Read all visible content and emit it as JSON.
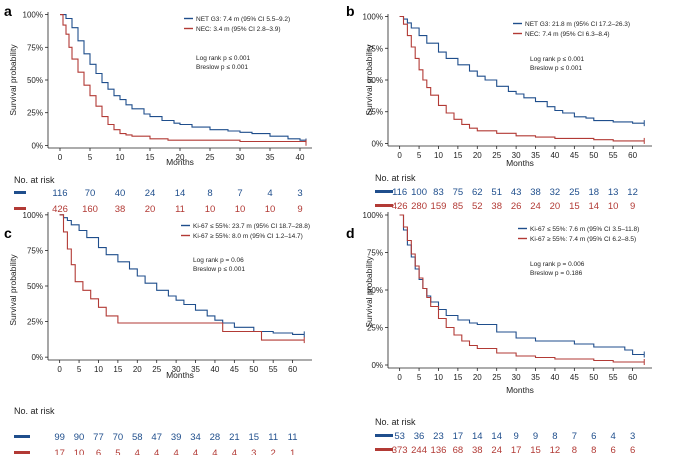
{
  "colors": {
    "blue": "#1f4e8c",
    "red": "#b23a35",
    "axis": "#222222"
  },
  "chart_data": [
    {
      "type": "line",
      "panel_label": "a",
      "ylabel": "Survival probability",
      "xlabel": "Months",
      "xlim": [
        -2,
        42
      ],
      "ylim": [
        -0.02,
        1.02
      ],
      "x_ticks": [
        0,
        5,
        10,
        15,
        20,
        25,
        30,
        35,
        40
      ],
      "y_ticks": [
        0,
        0.25,
        0.5,
        0.75,
        1.0
      ],
      "y_tick_labels": [
        "0%",
        "25%",
        "50%",
        "75%",
        "100%"
      ],
      "legend": [
        "NET G3: 7.4 m (95% CI 5.5–9.2)",
        "NEC:      3.4 m (95% CI 2.8–3.9)"
      ],
      "stats": [
        "Log rank p ≤ 0.001",
        "Breslow p ≤ 0.001"
      ],
      "series": [
        {
          "name": "NET G3",
          "color": "blue",
          "points": [
            [
              0,
              1
            ],
            [
              1,
              0.97
            ],
            [
              2,
              0.9
            ],
            [
              3,
              0.8
            ],
            [
              4,
              0.7
            ],
            [
              5,
              0.62
            ],
            [
              6,
              0.55
            ],
            [
              7,
              0.48
            ],
            [
              8,
              0.43
            ],
            [
              9,
              0.38
            ],
            [
              10,
              0.35
            ],
            [
              11,
              0.31
            ],
            [
              12,
              0.28
            ],
            [
              14,
              0.24
            ],
            [
              15,
              0.22
            ],
            [
              17,
              0.19
            ],
            [
              19,
              0.17
            ],
            [
              20,
              0.16
            ],
            [
              22,
              0.14
            ],
            [
              25,
              0.12
            ],
            [
              28,
              0.11
            ],
            [
              30,
              0.1
            ],
            [
              32,
              0.09
            ],
            [
              35,
              0.07
            ],
            [
              38,
              0.05
            ],
            [
              40,
              0.04
            ],
            [
              41,
              0.03
            ]
          ]
        },
        {
          "name": "NEC",
          "color": "red",
          "points": [
            [
              0,
              1
            ],
            [
              0.5,
              0.92
            ],
            [
              1,
              0.85
            ],
            [
              1.5,
              0.75
            ],
            [
              2,
              0.66
            ],
            [
              3,
              0.56
            ],
            [
              4,
              0.46
            ],
            [
              5,
              0.38
            ],
            [
              6,
              0.3
            ],
            [
              7,
              0.22
            ],
            [
              8,
              0.16
            ],
            [
              9,
              0.12
            ],
            [
              10,
              0.09
            ],
            [
              11,
              0.08
            ],
            [
              12,
              0.07
            ],
            [
              15,
              0.05
            ],
            [
              18,
              0.04
            ],
            [
              22,
              0.04
            ],
            [
              30,
              0.03
            ],
            [
              35,
              0.03
            ],
            [
              41,
              0.02
            ]
          ]
        }
      ],
      "risk_title": "No. at risk",
      "risk_x": [
        0,
        5,
        10,
        15,
        20,
        25,
        30,
        35,
        40
      ],
      "risk_rows": [
        {
          "color": "blue",
          "values": [
            "116",
            "70",
            "40",
            "24",
            "14",
            "8",
            "7",
            "4",
            "3"
          ]
        },
        {
          "color": "red",
          "values": [
            "426",
            "160",
            "38",
            "20",
            "11",
            "10",
            "10",
            "10",
            "9"
          ]
        }
      ]
    },
    {
      "type": "line",
      "panel_label": "b",
      "ylabel": "Survival probability",
      "xlabel": "Months",
      "xlim": [
        -3,
        65
      ],
      "ylim": [
        -0.02,
        1.02
      ],
      "x_ticks": [
        0,
        5,
        10,
        15,
        20,
        25,
        30,
        35,
        40,
        45,
        50,
        55,
        60
      ],
      "y_ticks": [
        0,
        0.25,
        0.5,
        0.75,
        1.0
      ],
      "y_tick_labels": [
        "0%",
        "25%",
        "50%",
        "75%",
        "100%"
      ],
      "legend": [
        "NET G3: 21.8 m (95% CI 17.2–26.3)",
        "NEC:      7.4 m (95% CI 6.3–8.4)"
      ],
      "stats": [
        "Log rank p ≤ 0.001",
        "Breslow p ≤ 0.001"
      ],
      "series": [
        {
          "name": "NET G3",
          "color": "blue",
          "points": [
            [
              0,
              1
            ],
            [
              1,
              0.98
            ],
            [
              2,
              0.95
            ],
            [
              3,
              0.91
            ],
            [
              5,
              0.85
            ],
            [
              7,
              0.79
            ],
            [
              10,
              0.72
            ],
            [
              12,
              0.67
            ],
            [
              15,
              0.62
            ],
            [
              18,
              0.57
            ],
            [
              20,
              0.53
            ],
            [
              22,
              0.5
            ],
            [
              25,
              0.45
            ],
            [
              28,
              0.41
            ],
            [
              30,
              0.39
            ],
            [
              32,
              0.36
            ],
            [
              35,
              0.33
            ],
            [
              38,
              0.29
            ],
            [
              40,
              0.26
            ],
            [
              42,
              0.24
            ],
            [
              45,
              0.21
            ],
            [
              48,
              0.2
            ],
            [
              50,
              0.18
            ],
            [
              55,
              0.17
            ],
            [
              60,
              0.16
            ],
            [
              63,
              0.16
            ]
          ]
        },
        {
          "name": "NEC",
          "color": "red",
          "points": [
            [
              0,
              1
            ],
            [
              1,
              0.94
            ],
            [
              2,
              0.85
            ],
            [
              3,
              0.76
            ],
            [
              4,
              0.67
            ],
            [
              5,
              0.58
            ],
            [
              6,
              0.5
            ],
            [
              7,
              0.44
            ],
            [
              8,
              0.38
            ],
            [
              10,
              0.3
            ],
            [
              12,
              0.24
            ],
            [
              14,
              0.19
            ],
            [
              16,
              0.15
            ],
            [
              18,
              0.12
            ],
            [
              20,
              0.1
            ],
            [
              25,
              0.08
            ],
            [
              30,
              0.06
            ],
            [
              35,
              0.05
            ],
            [
              40,
              0.04
            ],
            [
              50,
              0.03
            ],
            [
              55,
              0.02
            ],
            [
              63,
              0.02
            ]
          ]
        }
      ],
      "risk_title": "No. at risk",
      "risk_x": [
        0,
        5,
        10,
        15,
        20,
        25,
        30,
        35,
        40,
        45,
        50,
        55,
        60
      ],
      "risk_rows": [
        {
          "color": "blue",
          "values": [
            "116",
            "100",
            "83",
            "75",
            "62",
            "51",
            "43",
            "38",
            "32",
            "25",
            "18",
            "13",
            "12"
          ]
        },
        {
          "color": "red",
          "values": [
            "426",
            "280",
            "159",
            "85",
            "52",
            "38",
            "26",
            "24",
            "20",
            "15",
            "14",
            "10",
            "9"
          ]
        }
      ]
    },
    {
      "type": "line",
      "panel_label": "c",
      "ylabel": "Survival probability",
      "xlabel": "Months",
      "xlim": [
        -3,
        65
      ],
      "ylim": [
        -0.02,
        1.02
      ],
      "x_ticks": [
        0,
        5,
        10,
        15,
        20,
        25,
        30,
        35,
        40,
        45,
        50,
        55,
        60
      ],
      "y_ticks": [
        0,
        0.25,
        0.5,
        0.75,
        1.0
      ],
      "y_tick_labels": [
        "0%",
        "25%",
        "50%",
        "75%",
        "100%"
      ],
      "legend": [
        "Ki-67 ≤ 55%: 23.7 m (95% CI 18.7–28.8)",
        "Ki-67 ≥ 55%: 8.0 m (95% CI 1.2–14.7)"
      ],
      "stats": [
        "Log rank p = 0.06",
        "Breslow p ≤ 0.001"
      ],
      "series": [
        {
          "name": "Ki-67 ≤ 55%",
          "color": "blue",
          "points": [
            [
              0,
              1
            ],
            [
              1,
              0.98
            ],
            [
              2,
              0.96
            ],
            [
              3,
              0.93
            ],
            [
              5,
              0.89
            ],
            [
              7,
              0.84
            ],
            [
              10,
              0.77
            ],
            [
              12,
              0.72
            ],
            [
              15,
              0.67
            ],
            [
              18,
              0.62
            ],
            [
              20,
              0.57
            ],
            [
              22,
              0.52
            ],
            [
              25,
              0.47
            ],
            [
              28,
              0.43
            ],
            [
              30,
              0.4
            ],
            [
              32,
              0.37
            ],
            [
              35,
              0.33
            ],
            [
              38,
              0.29
            ],
            [
              40,
              0.26
            ],
            [
              42,
              0.24
            ],
            [
              45,
              0.21
            ],
            [
              50,
              0.18
            ],
            [
              55,
              0.17
            ],
            [
              60,
              0.16
            ],
            [
              63,
              0.16
            ]
          ]
        },
        {
          "name": "Ki-67 ≥ 55%",
          "color": "red",
          "points": [
            [
              0,
              1
            ],
            [
              1,
              0.88
            ],
            [
              2,
              0.76
            ],
            [
              3,
              0.65
            ],
            [
              4,
              0.53
            ],
            [
              6,
              0.47
            ],
            [
              8,
              0.41
            ],
            [
              10,
              0.35
            ],
            [
              12,
              0.29
            ],
            [
              15,
              0.24
            ],
            [
              40,
              0.24
            ],
            [
              42,
              0.18
            ],
            [
              50,
              0.18
            ],
            [
              52,
              0.12
            ],
            [
              63,
              0.12
            ]
          ]
        }
      ],
      "risk_title": "No. at risk",
      "risk_x": [
        0,
        5,
        10,
        15,
        20,
        25,
        30,
        35,
        40,
        45,
        50,
        55,
        60
      ],
      "risk_rows": [
        {
          "color": "blue",
          "values": [
            "99",
            "90",
            "77",
            "70",
            "58",
            "47",
            "39",
            "34",
            "28",
            "21",
            "15",
            "11",
            "11"
          ]
        },
        {
          "color": "red",
          "values": [
            "17",
            "10",
            "6",
            "5",
            "4",
            "4",
            "4",
            "4",
            "4",
            "4",
            "3",
            "2",
            "1"
          ]
        }
      ]
    },
    {
      "type": "line",
      "panel_label": "d",
      "ylabel": "Survival probability",
      "xlabel": "Months",
      "xlim": [
        -3,
        65
      ],
      "ylim": [
        -0.02,
        1.02
      ],
      "x_ticks": [
        0,
        5,
        10,
        15,
        20,
        25,
        30,
        35,
        40,
        45,
        50,
        55,
        60
      ],
      "y_ticks": [
        0,
        0.25,
        0.5,
        0.75,
        1.0
      ],
      "y_tick_labels": [
        "0%",
        "25%",
        "50%",
        "75%",
        "100%"
      ],
      "legend": [
        "Ki-67 ≤ 55%:   7.6 m (95% CI 3.5–11.8)",
        "Ki-67 ≥ 55%: 7.4 m (95% CI 6.2–8.5)"
      ],
      "stats": [
        "Log rank p = 0.006",
        "Breslow p = 0.186"
      ],
      "series": [
        {
          "name": "Ki-67 ≤ 55%",
          "color": "blue",
          "points": [
            [
              0,
              1
            ],
            [
              1,
              0.9
            ],
            [
              2,
              0.8
            ],
            [
              3,
              0.72
            ],
            [
              4,
              0.64
            ],
            [
              5,
              0.57
            ],
            [
              6,
              0.51
            ],
            [
              7,
              0.46
            ],
            [
              8,
              0.42
            ],
            [
              10,
              0.37
            ],
            [
              12,
              0.33
            ],
            [
              15,
              0.3
            ],
            [
              18,
              0.28
            ],
            [
              20,
              0.27
            ],
            [
              25,
              0.22
            ],
            [
              30,
              0.18
            ],
            [
              35,
              0.16
            ],
            [
              40,
              0.16
            ],
            [
              45,
              0.14
            ],
            [
              50,
              0.12
            ],
            [
              55,
              0.12
            ],
            [
              58,
              0.1
            ],
            [
              60,
              0.07
            ],
            [
              63,
              0.07
            ]
          ]
        },
        {
          "name": "Ki-67 ≥ 55%",
          "color": "red",
          "points": [
            [
              0,
              1
            ],
            [
              1,
              0.92
            ],
            [
              2,
              0.83
            ],
            [
              3,
              0.74
            ],
            [
              4,
              0.66
            ],
            [
              5,
              0.58
            ],
            [
              6,
              0.51
            ],
            [
              7,
              0.45
            ],
            [
              8,
              0.39
            ],
            [
              10,
              0.31
            ],
            [
              12,
              0.25
            ],
            [
              14,
              0.2
            ],
            [
              16,
              0.16
            ],
            [
              18,
              0.13
            ],
            [
              20,
              0.11
            ],
            [
              25,
              0.08
            ],
            [
              30,
              0.06
            ],
            [
              35,
              0.05
            ],
            [
              40,
              0.04
            ],
            [
              50,
              0.03
            ],
            [
              55,
              0.02
            ],
            [
              63,
              0.02
            ]
          ]
        }
      ],
      "risk_title": "No. at risk",
      "risk_x": [
        0,
        5,
        10,
        15,
        20,
        25,
        30,
        35,
        40,
        45,
        50,
        55,
        60
      ],
      "risk_rows": [
        {
          "color": "blue",
          "values": [
            "53",
            "36",
            "23",
            "17",
            "14",
            "14",
            "9",
            "9",
            "8",
            "7",
            "6",
            "4",
            "3"
          ]
        },
        {
          "color": "red",
          "values": [
            "373",
            "244",
            "136",
            "68",
            "38",
            "24",
            "17",
            "15",
            "12",
            "8",
            "8",
            "6",
            "6"
          ]
        }
      ]
    }
  ]
}
